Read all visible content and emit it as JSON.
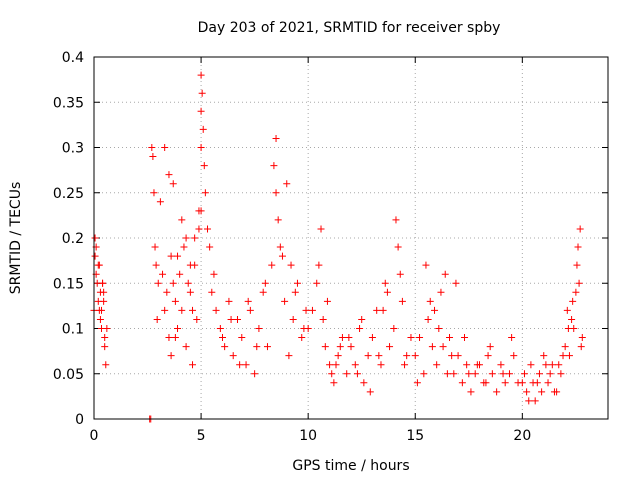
{
  "chart_data": {
    "type": "scatter",
    "title": "Day 203 of 2021, SRMTID for receiver spby",
    "xlabel": "GPS time / hours",
    "ylabel": "SRMTID / TECUs",
    "xlim": [
      0,
      24
    ],
    "ylim": [
      0,
      0.4
    ],
    "xticks": [
      0,
      5,
      10,
      15,
      20
    ],
    "xtick_labels": [
      "0",
      "5",
      "10",
      "15",
      "20"
    ],
    "yticks": [
      0,
      0.05,
      0.1,
      0.15,
      0.2,
      0.25,
      0.3,
      0.35,
      0.4
    ],
    "ytick_labels": [
      "0",
      "0.05",
      "0.1",
      "0.15",
      "0.2",
      "0.25",
      "0.3",
      "0.35",
      "0.4"
    ],
    "grid": true,
    "marker": "+",
    "series": [
      {
        "name": "SRMTID",
        "color": "#ff0000",
        "x": [
          0.0,
          0.05,
          0.1,
          0.15,
          0.2,
          0.25,
          0.3,
          0.35,
          0.4,
          0.45,
          0.5,
          0.55,
          0.6,
          0.05,
          0.1,
          0.2,
          0.3,
          0.4,
          0.5,
          0.25,
          0.35,
          0.45,
          2.6,
          2.65,
          2.7,
          2.75,
          2.8,
          2.85,
          2.9,
          2.95,
          3.0,
          3.1,
          3.2,
          3.3,
          3.4,
          3.5,
          3.6,
          3.7,
          3.8,
          3.9,
          4.0,
          4.1,
          4.2,
          4.3,
          4.4,
          4.5,
          4.6,
          4.7,
          4.8,
          4.9,
          5.0,
          5.05,
          5.1,
          5.15,
          5.2,
          5.3,
          5.4,
          3.3,
          3.5,
          3.7,
          3.9,
          4.1,
          4.3,
          4.5,
          4.7,
          4.9,
          5.0,
          5.0,
          5.0,
          3.6,
          3.8,
          4.6,
          5.5,
          5.7,
          5.9,
          6.1,
          6.3,
          6.5,
          6.7,
          6.9,
          7.1,
          7.3,
          7.5,
          7.7,
          7.9,
          8.1,
          8.3,
          8.5,
          8.7,
          8.9,
          9.1,
          9.3,
          9.5,
          9.7,
          9.9,
          8.4,
          8.5,
          8.6,
          9.0,
          9.2,
          5.6,
          6.0,
          6.4,
          6.8,
          7.2,
          7.6,
          8.0,
          8.8,
          9.4,
          9.8,
          10.0,
          10.2,
          10.4,
          10.6,
          10.8,
          11.0,
          11.2,
          11.4,
          11.6,
          11.8,
          12.0,
          12.2,
          12.4,
          12.6,
          12.8,
          13.0,
          13.2,
          13.4,
          13.6,
          13.8,
          14.0,
          14.2,
          14.4,
          14.6,
          14.8,
          10.5,
          10.7,
          11.1,
          11.5,
          12.5,
          13.3,
          13.7,
          14.1,
          14.3,
          10.9,
          11.3,
          11.9,
          12.3,
          12.9,
          13.5,
          14.5,
          15.0,
          15.2,
          15.4,
          15.6,
          15.8,
          16.0,
          16.2,
          16.4,
          16.6,
          16.8,
          17.0,
          17.2,
          17.4,
          17.6,
          17.8,
          18.0,
          18.2,
          18.4,
          18.6,
          18.8,
          19.0,
          19.2,
          19.4,
          19.6,
          19.8,
          15.5,
          15.9,
          16.1,
          16.3,
          16.5,
          16.9,
          17.3,
          17.9,
          18.5,
          19.1,
          15.1,
          15.7,
          16.7,
          17.5,
          18.3,
          19.5,
          20.0,
          20.2,
          20.4,
          20.6,
          20.8,
          21.0,
          21.2,
          21.4,
          21.6,
          21.8,
          22.0,
          22.1,
          22.2,
          22.3,
          22.4,
          22.5,
          22.6,
          22.7,
          22.8,
          20.1,
          20.5,
          20.9,
          21.3,
          21.7,
          22.15,
          22.35,
          22.55,
          22.65,
          22.75,
          20.3,
          20.7,
          21.1,
          21.5,
          21.9
        ],
        "y": [
          0.12,
          0.2,
          0.19,
          0.15,
          0.17,
          0.12,
          0.14,
          0.1,
          0.15,
          0.14,
          0.08,
          0.06,
          0.1,
          0.18,
          0.16,
          0.13,
          0.11,
          0.15,
          0.09,
          0.17,
          0.12,
          0.13,
          0.0,
          0.0,
          0.3,
          0.29,
          0.25,
          0.19,
          0.17,
          0.11,
          0.15,
          0.24,
          0.16,
          0.12,
          0.14,
          0.09,
          0.18,
          0.26,
          0.13,
          0.1,
          0.16,
          0.22,
          0.19,
          0.08,
          0.15,
          0.17,
          0.12,
          0.2,
          0.11,
          0.23,
          0.38,
          0.36,
          0.32,
          0.28,
          0.25,
          0.21,
          0.19,
          0.3,
          0.27,
          0.15,
          0.18,
          0.12,
          0.2,
          0.14,
          0.17,
          0.21,
          0.34,
          0.3,
          0.23,
          0.07,
          0.09,
          0.06,
          0.14,
          0.12,
          0.1,
          0.08,
          0.13,
          0.07,
          0.11,
          0.09,
          0.06,
          0.12,
          0.05,
          0.1,
          0.14,
          0.08,
          0.17,
          0.31,
          0.19,
          0.13,
          0.07,
          0.11,
          0.15,
          0.09,
          0.12,
          0.28,
          0.25,
          0.22,
          0.26,
          0.17,
          0.16,
          0.09,
          0.11,
          0.06,
          0.13,
          0.08,
          0.15,
          0.18,
          0.14,
          0.1,
          0.1,
          0.12,
          0.15,
          0.21,
          0.08,
          0.06,
          0.04,
          0.07,
          0.09,
          0.05,
          0.08,
          0.06,
          0.1,
          0.04,
          0.07,
          0.09,
          0.12,
          0.06,
          0.15,
          0.08,
          0.1,
          0.19,
          0.13,
          0.07,
          0.09,
          0.17,
          0.11,
          0.05,
          0.08,
          0.11,
          0.07,
          0.14,
          0.22,
          0.16,
          0.13,
          0.06,
          0.09,
          0.05,
          0.03,
          0.12,
          0.06,
          0.07,
          0.09,
          0.05,
          0.11,
          0.08,
          0.06,
          0.14,
          0.16,
          0.09,
          0.05,
          0.07,
          0.04,
          0.06,
          0.03,
          0.05,
          0.06,
          0.04,
          0.07,
          0.05,
          0.03,
          0.06,
          0.04,
          0.05,
          0.07,
          0.04,
          0.17,
          0.12,
          0.1,
          0.08,
          0.05,
          0.15,
          0.09,
          0.06,
          0.08,
          0.05,
          0.04,
          0.13,
          0.07,
          0.05,
          0.04,
          0.09,
          0.04,
          0.03,
          0.06,
          0.02,
          0.05,
          0.07,
          0.04,
          0.06,
          0.03,
          0.05,
          0.08,
          0.12,
          0.07,
          0.11,
          0.1,
          0.14,
          0.19,
          0.21,
          0.09,
          0.05,
          0.04,
          0.03,
          0.05,
          0.06,
          0.1,
          0.13,
          0.17,
          0.15,
          0.08,
          0.02,
          0.04,
          0.06,
          0.03,
          0.07
        ]
      }
    ]
  }
}
